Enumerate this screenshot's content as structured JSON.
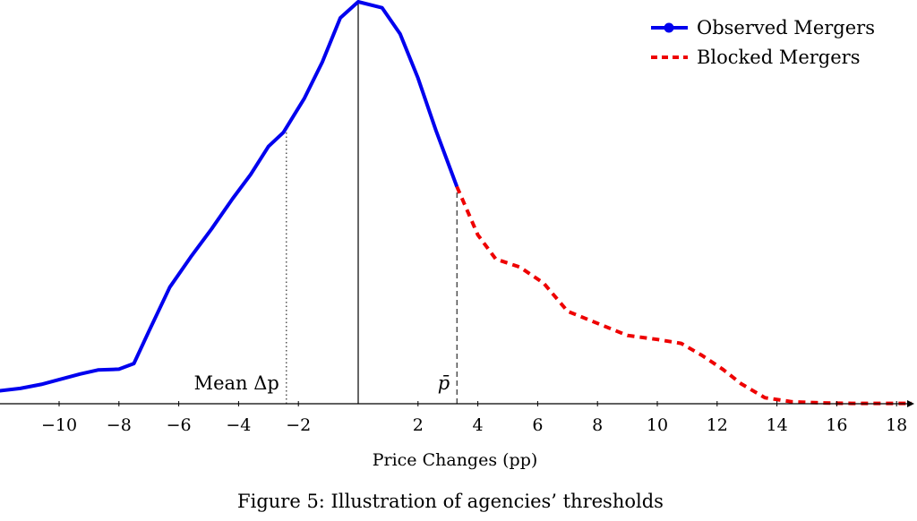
{
  "chart_data": {
    "type": "line",
    "title": "",
    "xlabel": "Price Changes (pp)",
    "ylabel": "",
    "xlim": [
      -12,
      18.5
    ],
    "ylim": [
      0,
      1.0
    ],
    "x_ticks": [
      -10,
      -8,
      -6,
      -4,
      -2,
      2,
      4,
      6,
      8,
      10,
      12,
      14,
      16,
      18
    ],
    "x_tick_labels": [
      "−10",
      "−8",
      "−6",
      "−4",
      "−2",
      "2",
      "4",
      "6",
      "8",
      "10",
      "12",
      "14",
      "16",
      "18"
    ],
    "grid": false,
    "legend_position": "top-right",
    "series": [
      {
        "name": "Observed Mergers",
        "color": "#0000ee",
        "style": "solid",
        "x": [
          -12,
          -11.3,
          -10.6,
          -10,
          -9.3,
          -8.7,
          -8,
          -7.5,
          -7,
          -6.3,
          -5.6,
          -4.9,
          -4.2,
          -3.6,
          -3,
          -2.5,
          -1.8,
          -1.2,
          -0.6,
          0,
          0.8,
          1.4,
          2,
          2.6,
          3.3
        ],
        "y": [
          0.032,
          0.038,
          0.048,
          0.06,
          0.074,
          0.084,
          0.086,
          0.1,
          0.18,
          0.29,
          0.365,
          0.435,
          0.51,
          0.57,
          0.64,
          0.675,
          0.76,
          0.85,
          0.96,
          1.0,
          0.985,
          0.92,
          0.81,
          0.68,
          0.54
        ]
      },
      {
        "name": "Blocked Mergers",
        "color": "#ee0000",
        "style": "dashed",
        "x": [
          3.3,
          4,
          4.6,
          5.4,
          6.2,
          7,
          8,
          9,
          10,
          10.8,
          11.5,
          12.2,
          12.8,
          13.6,
          14.5,
          15.5,
          16.5,
          17.5,
          18.5
        ],
        "y": [
          0.54,
          0.42,
          0.36,
          0.34,
          0.3,
          0.23,
          0.2,
          0.17,
          0.16,
          0.15,
          0.12,
          0.085,
          0.05,
          0.015,
          0.005,
          0.002,
          0.001,
          0.001,
          0.001
        ]
      }
    ],
    "annotations": [
      {
        "label": "Mean Δp",
        "x": -2.4,
        "line_style": "dotted"
      },
      {
        "label": "p̄",
        "x": 3.3,
        "line_style": "dashed"
      }
    ],
    "vertical_reference_x": 0
  },
  "caption": "Figure 5: Illustration of agencies’ thresholds"
}
